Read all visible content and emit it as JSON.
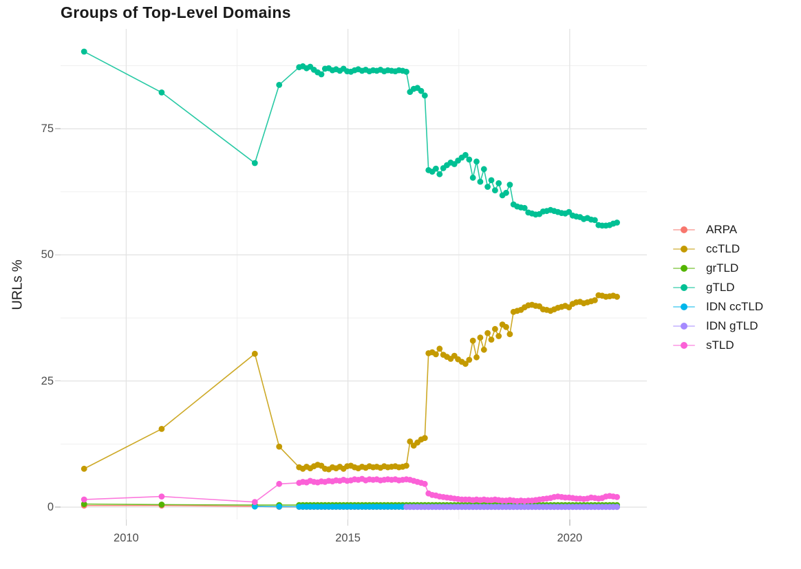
{
  "chart_data": {
    "type": "line",
    "title": "Groups of Top-Level Domains",
    "xlabel": "",
    "ylabel": "URLs %",
    "legend_position": "right",
    "grid": true,
    "background": "#ffffff",
    "major_grid_color": "#e3e3e3",
    "minor_grid_color": "#efefef",
    "axis_text_color": "#4d4d4d",
    "xlim": [
      2008.52,
      2021.74
    ],
    "ylim": [
      -2.45,
      94.8
    ],
    "x_ticks": [
      {
        "value": 2010,
        "label": "2010"
      },
      {
        "value": 2015,
        "label": "2015"
      },
      {
        "value": 2020,
        "label": "2020"
      }
    ],
    "x_minor_ticks": [
      2012.5,
      2017.5
    ],
    "y_ticks": [
      {
        "value": 0,
        "label": "0"
      },
      {
        "value": 25,
        "label": "25"
      },
      {
        "value": 50,
        "label": "50"
      },
      {
        "value": 75,
        "label": "75"
      }
    ],
    "y_minor_ticks": [
      12.5,
      37.5,
      62.5,
      87.5
    ],
    "x_dense": [
      2013.9,
      2013.983,
      2014.067,
      2014.15,
      2014.233,
      2014.317,
      2014.4,
      2014.483,
      2014.567,
      2014.65,
      2014.733,
      2014.817,
      2014.9,
      2014.983,
      2015.067,
      2015.15,
      2015.233,
      2015.317,
      2015.4,
      2015.483,
      2015.567,
      2015.65,
      2015.733,
      2015.817,
      2015.9,
      2015.983,
      2016.067,
      2016.15,
      2016.233,
      2016.317,
      2016.4,
      2016.483,
      2016.567,
      2016.65,
      2016.733,
      2016.817,
      2016.9,
      2016.983,
      2017.067,
      2017.15,
      2017.233,
      2017.317,
      2017.4,
      2017.483,
      2017.567,
      2017.65,
      2017.733,
      2017.817,
      2017.9,
      2017.983,
      2018.067,
      2018.15,
      2018.233,
      2018.317,
      2018.4,
      2018.483,
      2018.567,
      2018.65,
      2018.733,
      2018.817,
      2018.9,
      2018.983,
      2019.067,
      2019.15,
      2019.233,
      2019.317,
      2019.4,
      2019.483,
      2019.567,
      2019.65,
      2019.733,
      2019.817,
      2019.9,
      2019.983,
      2020.067,
      2020.15,
      2020.233,
      2020.317,
      2020.4,
      2020.483,
      2020.567,
      2020.65,
      2020.733,
      2020.817,
      2020.9,
      2020.983,
      2021.067
    ],
    "series": [
      {
        "name": "ARPA",
        "color": "#F8766D",
        "sparse": [
          [
            2009.05,
            0.3
          ],
          [
            2010.8,
            0.3
          ],
          [
            2012.9,
            0.15
          ],
          [
            2013.45,
            0.05
          ]
        ],
        "dense_y": {
          "const": 0.05
        }
      },
      {
        "name": "ccTLD",
        "color": "#C49A00",
        "sparse": [
          [
            2009.05,
            7.6
          ],
          [
            2010.8,
            15.5
          ],
          [
            2012.9,
            30.4
          ],
          [
            2013.45,
            12.0
          ]
        ],
        "dense_y": [
          7.9,
          7.6,
          8.0,
          7.7,
          8.1,
          8.4,
          8.2,
          7.6,
          7.5,
          7.9,
          7.7,
          8.0,
          7.6,
          8.1,
          8.2,
          7.9,
          7.7,
          8.0,
          7.8,
          8.1,
          7.9,
          8.0,
          7.8,
          8.1,
          7.9,
          8.0,
          8.1,
          7.9,
          8.0,
          8.2,
          13.0,
          12.2,
          12.8,
          13.4,
          13.7,
          30.5,
          30.7,
          30.3,
          31.4,
          30.2,
          29.8,
          29.4,
          30.0,
          29.3,
          28.8,
          28.4,
          29.2,
          33.0,
          29.7,
          33.6,
          31.2,
          34.5,
          33.2,
          35.3,
          33.9,
          36.2,
          35.7,
          34.3,
          38.7,
          38.9,
          39.1,
          39.6,
          40.0,
          40.1,
          39.9,
          39.8,
          39.2,
          39.1,
          38.9,
          39.2,
          39.5,
          39.7,
          39.9,
          39.6,
          40.3,
          40.6,
          40.7,
          40.4,
          40.6,
          40.8,
          41.0,
          42.0,
          41.9,
          41.7,
          41.8,
          41.9,
          41.7
        ]
      },
      {
        "name": "grTLD",
        "color": "#53B400",
        "sparse": [
          [
            2009.05,
            0.6
          ],
          [
            2010.8,
            0.5
          ],
          [
            2012.9,
            0.4
          ],
          [
            2013.45,
            0.4
          ]
        ],
        "dense_y": {
          "const": 0.4
        }
      },
      {
        "name": "gTLD",
        "color": "#00C094",
        "sparse": [
          [
            2009.05,
            90.3
          ],
          [
            2010.8,
            82.2
          ],
          [
            2012.9,
            68.2
          ],
          [
            2013.45,
            83.7
          ]
        ],
        "dense_y": [
          87.2,
          87.4,
          87.0,
          87.3,
          86.7,
          86.2,
          85.8,
          86.9,
          87.0,
          86.6,
          86.8,
          86.5,
          86.9,
          86.4,
          86.3,
          86.6,
          86.8,
          86.5,
          86.7,
          86.4,
          86.6,
          86.5,
          86.7,
          86.4,
          86.6,
          86.5,
          86.4,
          86.6,
          86.5,
          86.3,
          82.3,
          82.9,
          83.1,
          82.5,
          81.6,
          66.8,
          66.5,
          67.1,
          66.0,
          67.2,
          67.8,
          68.3,
          68.0,
          68.7,
          69.3,
          69.8,
          68.9,
          65.3,
          68.5,
          64.5,
          67.0,
          63.5,
          64.8,
          62.8,
          64.2,
          61.8,
          62.3,
          63.9,
          60.0,
          59.6,
          59.4,
          59.3,
          58.4,
          58.2,
          58.0,
          58.1,
          58.6,
          58.7,
          58.9,
          58.7,
          58.5,
          58.3,
          58.2,
          58.5,
          57.8,
          57.6,
          57.5,
          57.1,
          57.3,
          57.0,
          56.9,
          55.9,
          55.8,
          55.8,
          55.9,
          56.2,
          56.4
        ]
      },
      {
        "name": "IDN ccTLD",
        "color": "#00B6EB",
        "sparse": [
          [
            2012.9,
            0.12
          ],
          [
            2013.45,
            0.1
          ]
        ],
        "dense_y": {
          "const": 0.08
        }
      },
      {
        "name": "IDN gTLD",
        "color": "#A58AFF",
        "sparse": [],
        "dense_y": {
          "const": 0.03,
          "from_index": 29
        }
      },
      {
        "name": "sTLD",
        "color": "#FB61D7",
        "sparse": [
          [
            2009.05,
            1.5
          ],
          [
            2010.8,
            2.1
          ],
          [
            2012.9,
            1.0
          ],
          [
            2013.45,
            4.6
          ]
        ],
        "dense_y": [
          4.8,
          5.0,
          4.9,
          5.2,
          5.0,
          4.9,
          5.1,
          5.0,
          5.2,
          5.1,
          5.3,
          5.2,
          5.4,
          5.2,
          5.3,
          5.5,
          5.4,
          5.6,
          5.3,
          5.5,
          5.4,
          5.5,
          5.3,
          5.4,
          5.5,
          5.4,
          5.5,
          5.3,
          5.4,
          5.5,
          5.4,
          5.2,
          5.0,
          4.8,
          4.6,
          2.7,
          2.4,
          2.3,
          2.1,
          2.0,
          1.9,
          1.8,
          1.7,
          1.6,
          1.5,
          1.5,
          1.5,
          1.4,
          1.5,
          1.4,
          1.5,
          1.4,
          1.4,
          1.5,
          1.4,
          1.3,
          1.3,
          1.4,
          1.3,
          1.2,
          1.3,
          1.2,
          1.3,
          1.3,
          1.4,
          1.5,
          1.6,
          1.7,
          1.8,
          2.0,
          2.1,
          2.0,
          1.9,
          1.9,
          1.8,
          1.7,
          1.7,
          1.6,
          1.7,
          1.9,
          1.8,
          1.7,
          1.8,
          2.1,
          2.2,
          2.1,
          2.0
        ]
      }
    ]
  }
}
